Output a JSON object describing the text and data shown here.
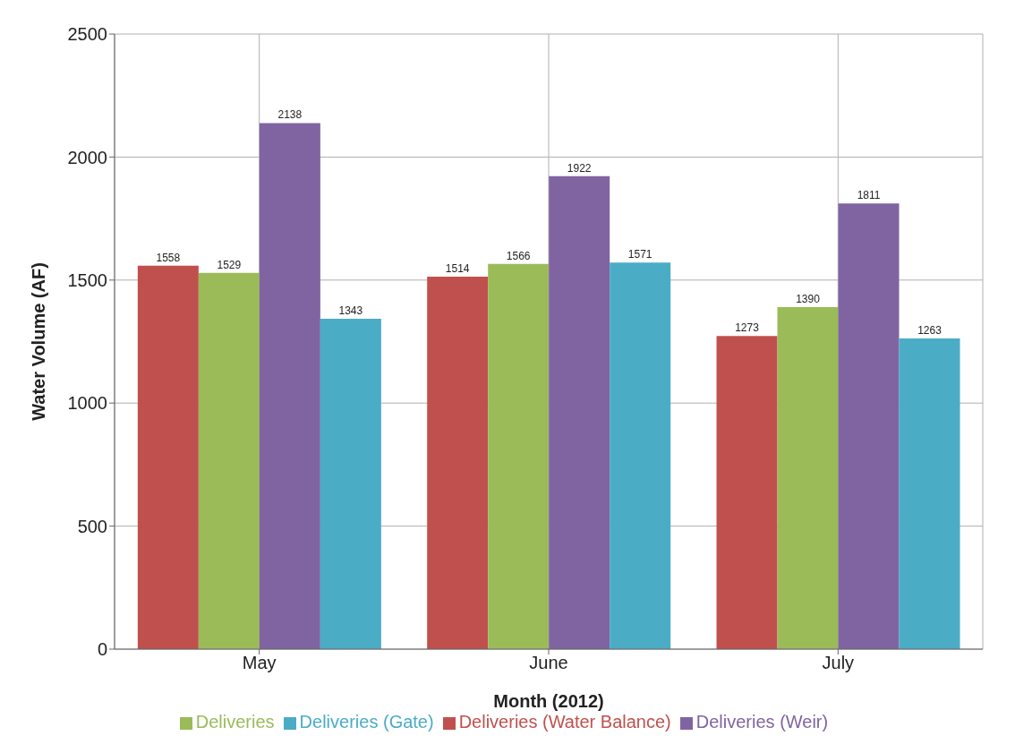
{
  "chart_data": {
    "type": "bar",
    "xlabel": "Month (2012)",
    "ylabel": "Water Volume (AF)",
    "categories": [
      "May",
      "June",
      "July"
    ],
    "series": [
      {
        "name": "Deliveries (Water Balance)",
        "color": "#c0504d",
        "values": [
          1558,
          1514,
          1273
        ]
      },
      {
        "name": "Deliveries",
        "color": "#9bbb59",
        "values": [
          1529,
          1566,
          1390
        ]
      },
      {
        "name": "Deliveries (Weir)",
        "color": "#8064a2",
        "values": [
          2138,
          1922,
          1811
        ]
      },
      {
        "name": "Deliveries (Gate)",
        "color": "#4bacc6",
        "values": [
          1343,
          1571,
          1263
        ]
      }
    ],
    "ylim": [
      0,
      2500
    ],
    "yticks": [
      0,
      500,
      1000,
      1500,
      2000,
      2500
    ],
    "grid": true,
    "legend": "bottom",
    "data_labels": true
  }
}
